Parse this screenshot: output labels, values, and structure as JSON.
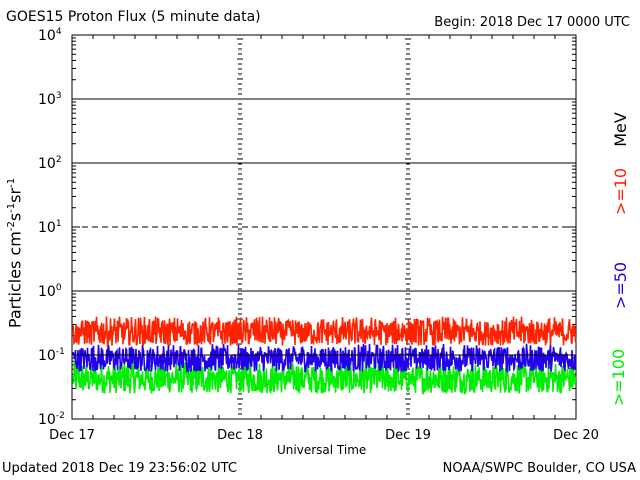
{
  "header": {
    "title": "GOES15 Proton Flux (5 minute data)",
    "begin": "Begin: 2018 Dec 17 0000 UTC"
  },
  "footer": {
    "updated": "Updated 2018 Dec 19 23:56:02 UTC",
    "credit": "NOAA/SWPC Boulder, CO USA"
  },
  "axes": {
    "xlabel": "Universal Time",
    "ylabel_base": "Particles cm",
    "ylabel_sup1": "-2",
    "ylabel_s": "s",
    "ylabel_sup2": "-1",
    "ylabel_sr": "sr",
    "ylabel_sup3": "-1"
  },
  "legend": {
    "unit": "MeV",
    "items": [
      {
        "label": ">=10",
        "color": "#ff2200"
      },
      {
        "label": ">=50",
        "color": "#2200ee"
      },
      {
        "label": ">=100",
        "color": "#00ee00"
      }
    ]
  },
  "chart_data": {
    "type": "line",
    "title": "GOES15 Proton Flux (5 minute data)",
    "xlabel": "Universal Time",
    "ylabel": "Particles cm-2 s-1 sr-1",
    "yscale": "log",
    "ylim": [
      0.01,
      10000
    ],
    "yticks": [
      "10-2",
      "10-1",
      "100",
      "101",
      "102",
      "103",
      "104"
    ],
    "xlim": [
      "2018-12-17",
      "2018-12-20"
    ],
    "xticks": [
      "Dec 17",
      "Dec 18",
      "Dec 19",
      "Dec 20"
    ],
    "grid": true,
    "legend_position": "right",
    "series": [
      {
        "name": ">=10 MeV",
        "color": "#ff2200",
        "mean": 0.2,
        "min": 0.14,
        "max": 0.4
      },
      {
        "name": ">=50 MeV",
        "color": "#2200ee",
        "mean": 0.08,
        "min": 0.055,
        "max": 0.15
      },
      {
        "name": ">=100 MeV",
        "color": "#00ee00",
        "mean": 0.04,
        "min": 0.025,
        "max": 0.08
      }
    ]
  }
}
